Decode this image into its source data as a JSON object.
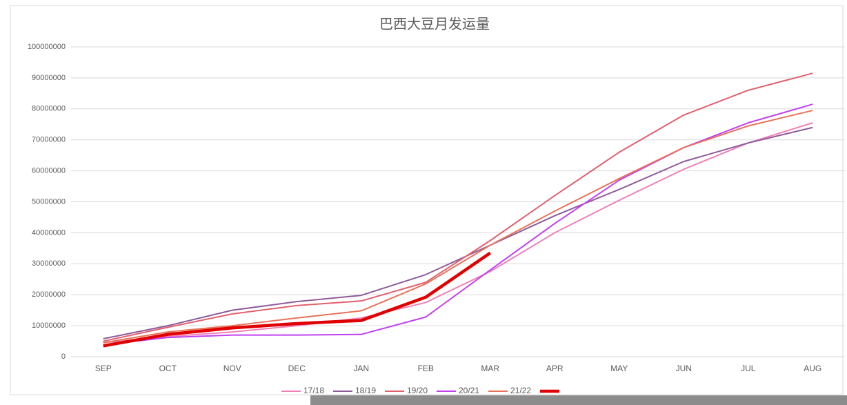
{
  "chart_data": {
    "type": "line",
    "title": "巴西大豆月发运量",
    "categories": [
      "SEP",
      "OCT",
      "NOV",
      "DEC",
      "JAN",
      "FEB",
      "MAR",
      "APR",
      "MAY",
      "JUN",
      "JUL",
      "AUG"
    ],
    "series": [
      {
        "name": "17/18",
        "color": "#f080b8",
        "values": [
          4500000,
          6500000,
          8000000,
          10000000,
          12500000,
          17500000,
          27500000,
          40000000,
          50500000,
          60500000,
          69000000,
          75500000
        ]
      },
      {
        "name": "18/19",
        "color": "#8e5b9b",
        "values": [
          5800000,
          10000000,
          15000000,
          17800000,
          19800000,
          26500000,
          36000000,
          45500000,
          54000000,
          63000000,
          69000000,
          74000000
        ]
      },
      {
        "name": "19/20",
        "color": "#e0606e",
        "values": [
          5000000,
          9500000,
          13800000,
          16500000,
          18000000,
          24000000,
          37500000,
          52000000,
          66000000,
          78000000,
          86000000,
          91500000
        ]
      },
      {
        "name": "20/21",
        "color": "#c040f0",
        "values": [
          3800000,
          6200000,
          7000000,
          7000000,
          7200000,
          12800000,
          28000000,
          43000000,
          57000000,
          67500000,
          75500000,
          81500000
        ]
      },
      {
        "name": "21/22",
        "color": "#e8735a",
        "values": [
          4500000,
          8000000,
          10000000,
          12500000,
          14800000,
          23500000,
          36000000,
          47000000,
          57500000,
          67500000,
          74500000,
          79500000
        ]
      },
      {
        "color": "#e00000",
        "values": [
          3500000,
          7200000,
          9300000,
          10700000,
          11700000,
          19200000,
          33500000,
          null,
          null,
          null,
          null,
          null
        ]
      }
    ],
    "ylim": [
      0,
      100000000
    ],
    "yticks": [
      0,
      10000000,
      20000000,
      30000000,
      40000000,
      50000000,
      60000000,
      70000000,
      80000000,
      90000000,
      100000000
    ],
    "grid": true
  }
}
